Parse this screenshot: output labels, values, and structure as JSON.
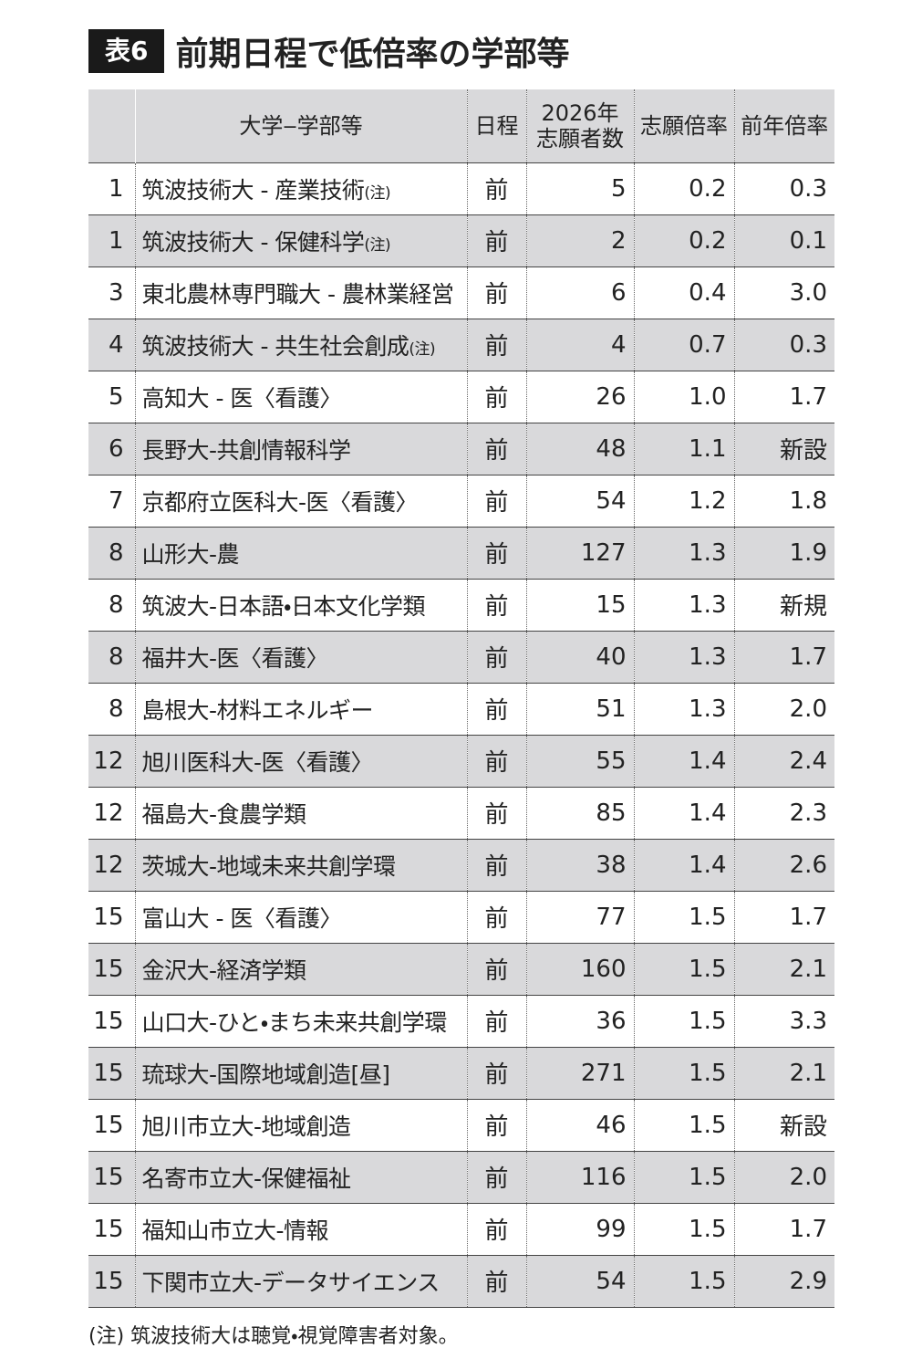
{
  "title": {
    "label": "表6",
    "text": "前期日程で低倍率の学部等"
  },
  "table": {
    "headers": {
      "name": "大学‒学部等",
      "schedule": "日程",
      "applicants": [
        "2026年",
        "志願者数"
      ],
      "ratio": "志願倍率",
      "prev": "前年倍率"
    },
    "rows": [
      {
        "rank": "1",
        "name": "筑波技術大 - 産業技術",
        "note": "(注)",
        "schedule": "前",
        "applicants": "5",
        "ratio": "0.2",
        "prev": "0.3"
      },
      {
        "rank": "1",
        "name": "筑波技術大 - 保健科学",
        "note": "(注)",
        "schedule": "前",
        "applicants": "2",
        "ratio": "0.2",
        "prev": "0.1"
      },
      {
        "rank": "3",
        "name": "東北農林専門職大 - 農林業経営",
        "schedule": "前",
        "applicants": "6",
        "ratio": "0.4",
        "prev": "3.0"
      },
      {
        "rank": "4",
        "name": "筑波技術大 - 共生社会創成",
        "note": "(注)",
        "schedule": "前",
        "applicants": "4",
        "ratio": "0.7",
        "prev": "0.3"
      },
      {
        "rank": "5",
        "name": "高知大 - 医〈看護〉",
        "schedule": "前",
        "applicants": "26",
        "ratio": "1.0",
        "prev": "1.7"
      },
      {
        "rank": "6",
        "name": "長野大-共創情報科学",
        "schedule": "前",
        "applicants": "48",
        "ratio": "1.1",
        "prev": "新設"
      },
      {
        "rank": "7",
        "name": "京都府立医科大-医〈看護〉",
        "schedule": "前",
        "applicants": "54",
        "ratio": "1.2",
        "prev": "1.8"
      },
      {
        "rank": "8",
        "name": "山形大-農",
        "schedule": "前",
        "applicants": "127",
        "ratio": "1.3",
        "prev": "1.9"
      },
      {
        "rank": "8",
        "name": "筑波大-日本語・日本文化学類",
        "schedule": "前",
        "applicants": "15",
        "ratio": "1.3",
        "prev": "新規"
      },
      {
        "rank": "8",
        "name": "福井大-医〈看護〉",
        "schedule": "前",
        "applicants": "40",
        "ratio": "1.3",
        "prev": "1.7"
      },
      {
        "rank": "8",
        "name": "島根大-材料エネルギー",
        "schedule": "前",
        "applicants": "51",
        "ratio": "1.3",
        "prev": "2.0"
      },
      {
        "rank": "12",
        "name": "旭川医科大-医〈看護〉",
        "schedule": "前",
        "applicants": "55",
        "ratio": "1.4",
        "prev": "2.4"
      },
      {
        "rank": "12",
        "name": "福島大-食農学類",
        "schedule": "前",
        "applicants": "85",
        "ratio": "1.4",
        "prev": "2.3"
      },
      {
        "rank": "12",
        "name": "茨城大-地域未来共創学環",
        "schedule": "前",
        "applicants": "38",
        "ratio": "1.4",
        "prev": "2.6"
      },
      {
        "rank": "15",
        "name": "富山大 - 医〈看護〉",
        "schedule": "前",
        "applicants": "77",
        "ratio": "1.5",
        "prev": "1.7"
      },
      {
        "rank": "15",
        "name": "金沢大-経済学類",
        "schedule": "前",
        "applicants": "160",
        "ratio": "1.5",
        "prev": "2.1"
      },
      {
        "rank": "15",
        "name": "山口大-ひと・まち未来共創学環",
        "schedule": "前",
        "applicants": "36",
        "ratio": "1.5",
        "prev": "3.3"
      },
      {
        "rank": "15",
        "name": "琉球大-国際地域創造[昼]",
        "schedule": "前",
        "applicants": "271",
        "ratio": "1.5",
        "prev": "2.1"
      },
      {
        "rank": "15",
        "name": "旭川市立大-地域創造",
        "schedule": "前",
        "applicants": "46",
        "ratio": "1.5",
        "prev": "新設"
      },
      {
        "rank": "15",
        "name": "名寄市立大-保健福祉",
        "schedule": "前",
        "applicants": "116",
        "ratio": "1.5",
        "prev": "2.0"
      },
      {
        "rank": "15",
        "name": "福知山市立大-情報",
        "schedule": "前",
        "applicants": "99",
        "ratio": "1.5",
        "prev": "1.7"
      },
      {
        "rank": "15",
        "name": "下関市立大-データサイエンス",
        "schedule": "前",
        "applicants": "54",
        "ratio": "1.5",
        "prev": "2.9"
      }
    ]
  },
  "footnote": "(注) 筑波技術大は聴覚・視覚障害者対象。"
}
